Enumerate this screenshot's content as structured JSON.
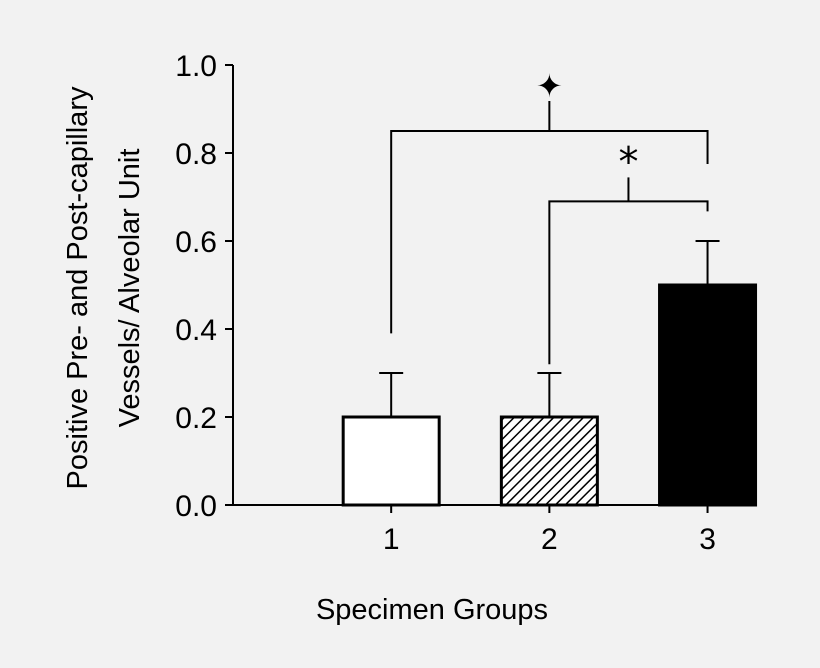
{
  "chart_data": {
    "type": "bar",
    "categories": [
      "1",
      "2",
      "3"
    ],
    "values": [
      0.2,
      0.2,
      0.5
    ],
    "errors": [
      0.1,
      0.1,
      0.1
    ],
    "bar_fills": [
      "white",
      "hatched",
      "black"
    ],
    "ylim": [
      0.0,
      1.0
    ],
    "xlim": [
      0,
      3.3
    ],
    "yticks": [
      "0.0",
      "0.2",
      "0.4",
      "0.6",
      "0.8",
      "1.0"
    ],
    "ytick_values": [
      0.0,
      0.2,
      0.4,
      0.6,
      0.8,
      1.0
    ],
    "xlabel": "Specimen Groups",
    "ylabel_line1": "Positive Pre- and Post-capillary",
    "ylabel_line2": "Vessels/ Alveolar Unit",
    "significance": [
      {
        "from": "1",
        "to": "3",
        "symbol": "✦",
        "level": 0.85
      },
      {
        "from": "2",
        "to": "3",
        "symbol": "*",
        "level": 0.69
      }
    ],
    "grid": false,
    "legend": "none"
  },
  "colors": {
    "background": "#f2f2f2",
    "ink": "#000000",
    "bar_white": "#ffffff"
  }
}
